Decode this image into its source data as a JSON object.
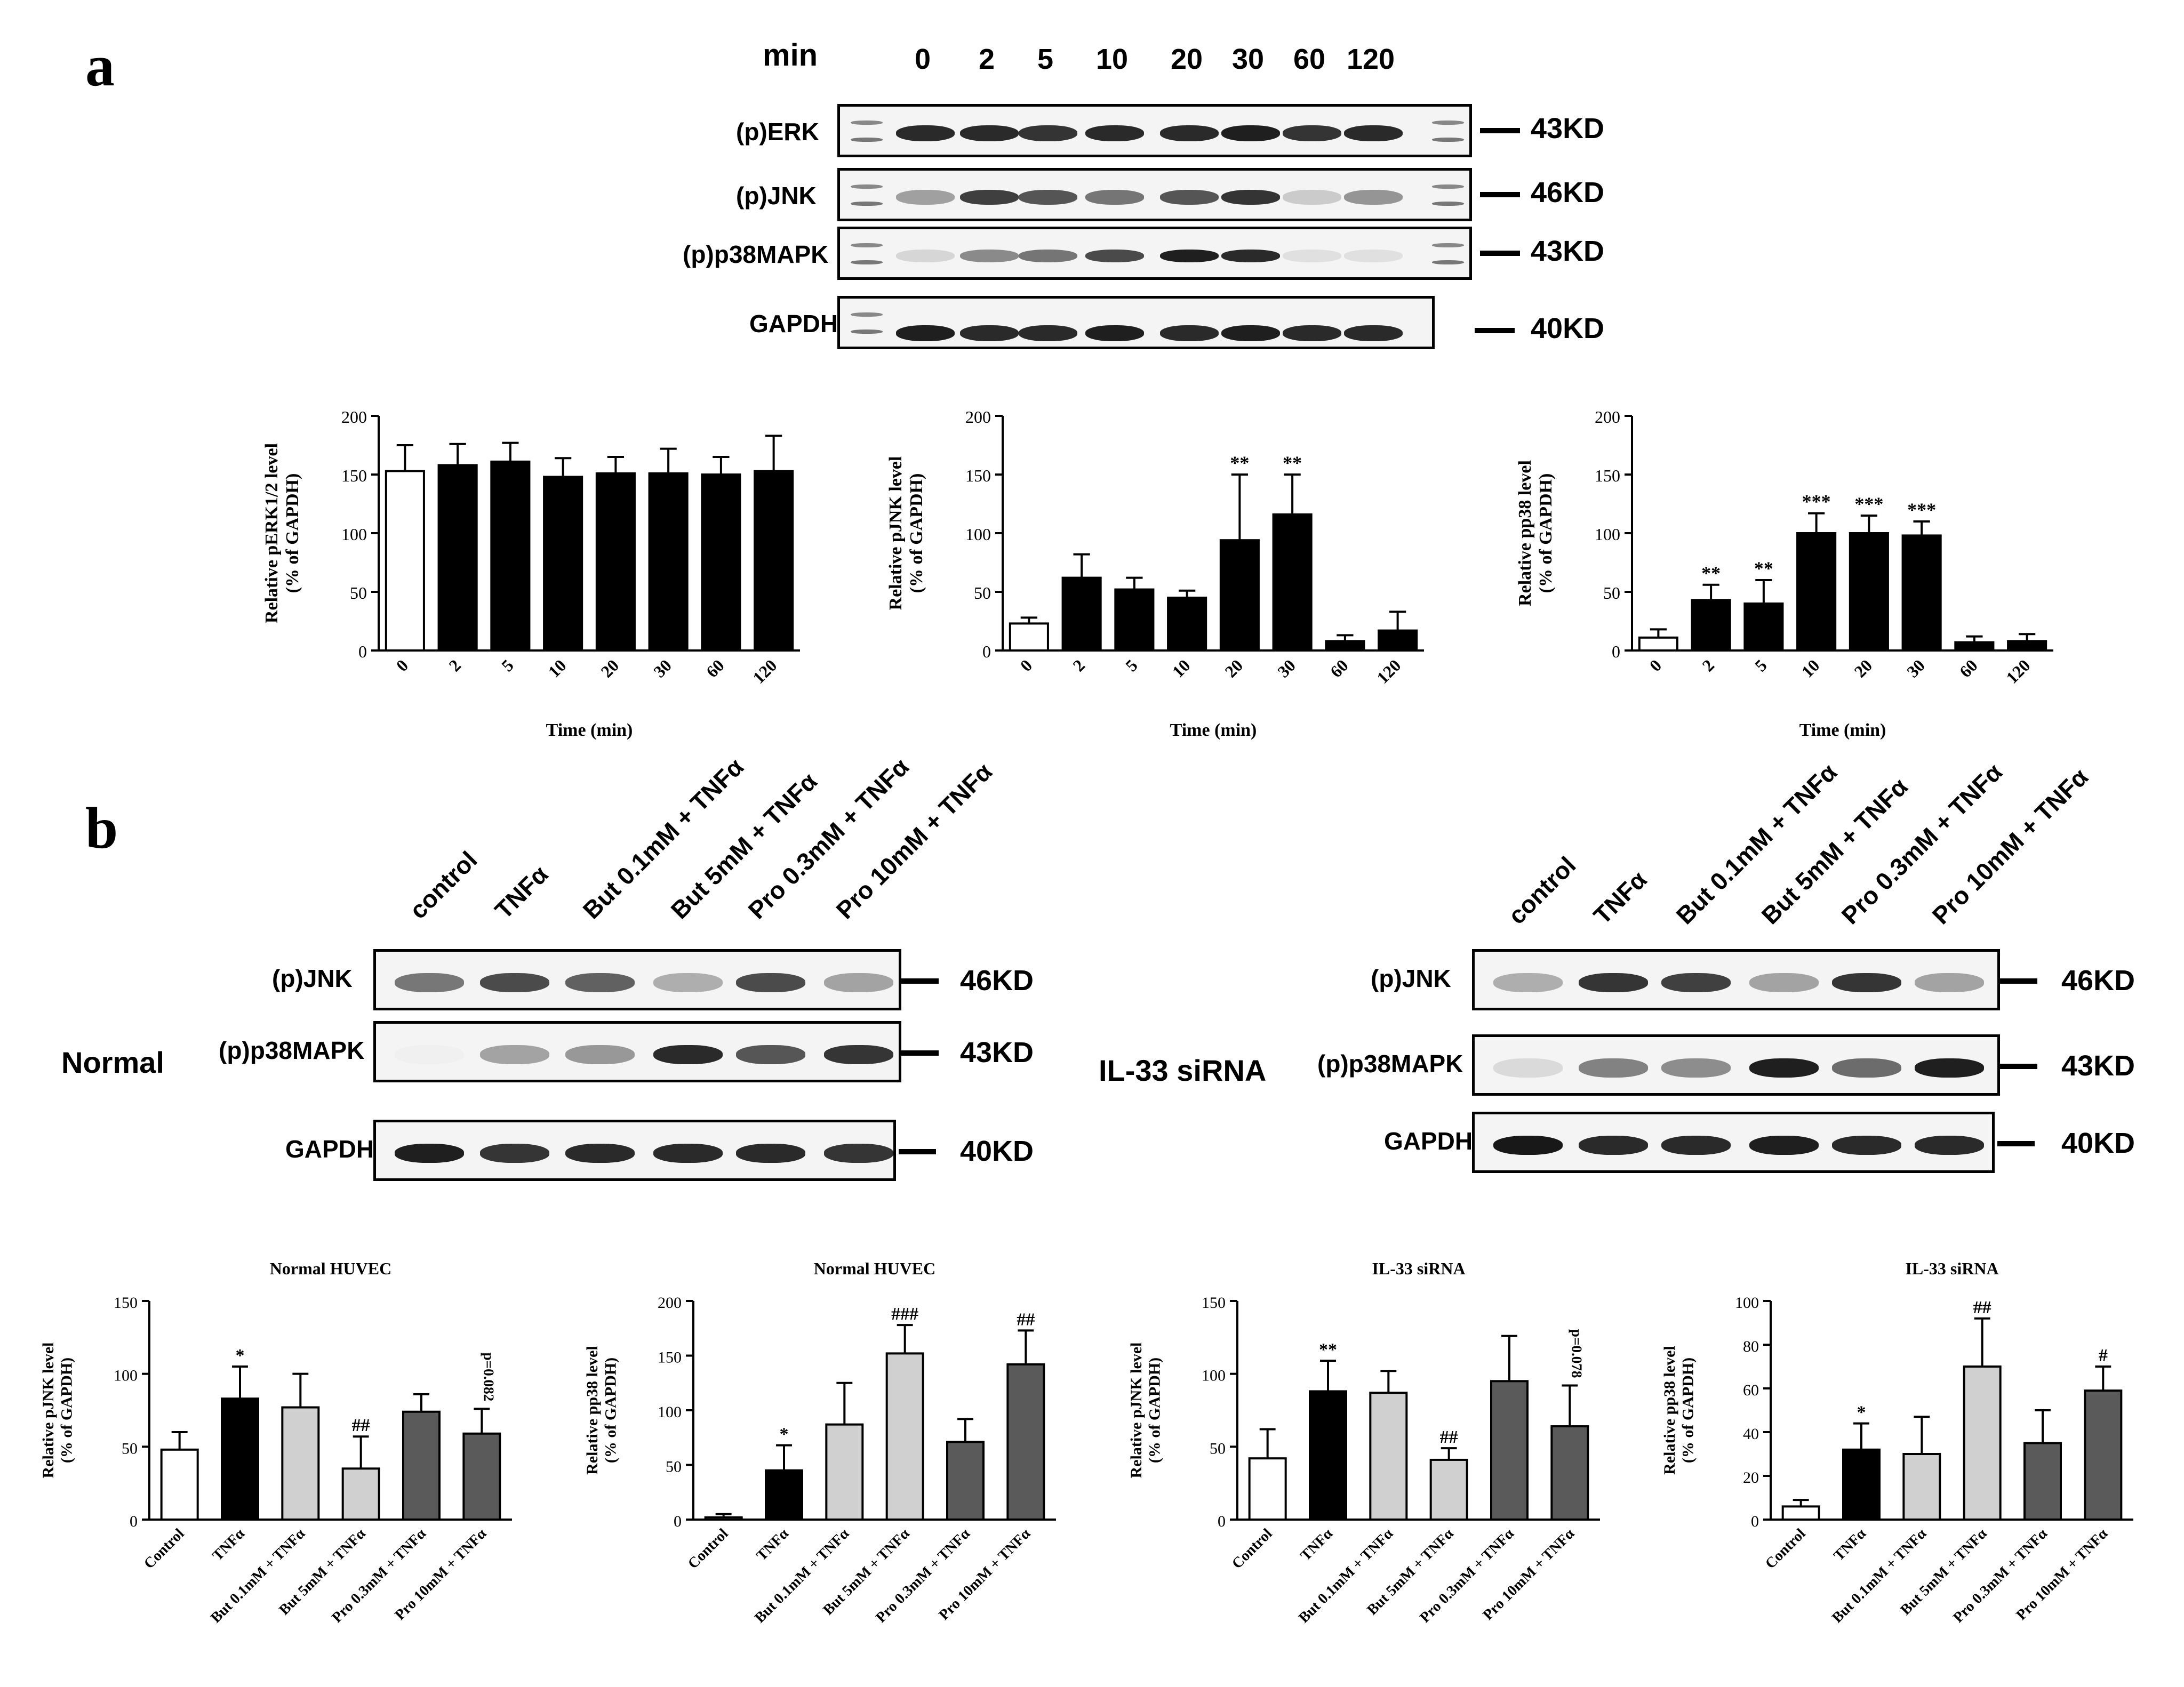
{
  "panel_a": {
    "letter": "a",
    "time_header": "min",
    "times": [
      "0",
      "2",
      "5",
      "10",
      "20",
      "30",
      "60",
      "120"
    ],
    "blots": [
      {
        "label": "(p)ERK",
        "kd": "43KD"
      },
      {
        "label": "(p)JNK",
        "kd": "46KD"
      },
      {
        "label": "(p)p38MAPK",
        "kd": "43KD"
      },
      {
        "label": "GAPDH",
        "kd": "40KD"
      }
    ]
  },
  "panel_b": {
    "letter": "b",
    "treatments": [
      "control",
      "TNFα",
      "But 0.1mM + TNFα",
      "But 5mM + TNFα",
      "Pro 0.3mM + TNFα",
      "Pro 10mM + TNFα"
    ],
    "left_group": "Normal",
    "right_group": "IL-33 siRNA",
    "blots": [
      {
        "label": "(p)JNK",
        "kd": "46KD"
      },
      {
        "label": "(p)p38MAPK",
        "kd": "43KD"
      },
      {
        "label": "GAPDH",
        "kd": "40KD"
      }
    ]
  },
  "chart_data": [
    {
      "type": "bar",
      "title": "",
      "xlabel": "Time (min)",
      "ylabel": "Relative pERK1/2 level\n(% of GAPDH)",
      "ylim": [
        0,
        200
      ],
      "yticks": [
        0,
        50,
        100,
        150,
        200
      ],
      "categories": [
        "0",
        "2",
        "5",
        "10",
        "20",
        "30",
        "60",
        "120"
      ],
      "values": [
        153,
        158,
        161,
        148,
        151,
        151,
        150,
        153
      ],
      "errors": [
        22,
        18,
        16,
        16,
        14,
        21,
        15,
        30
      ],
      "fills": [
        "#ffffff",
        "#000000",
        "#000000",
        "#000000",
        "#000000",
        "#000000",
        "#000000",
        "#000000"
      ],
      "annotations": [
        "",
        "",
        "",
        "",
        "",
        "",
        "",
        ""
      ]
    },
    {
      "type": "bar",
      "title": "",
      "xlabel": "Time (min)",
      "ylabel": "Relative pJNK level\n(% of GAPDH)",
      "ylim": [
        0,
        200
      ],
      "yticks": [
        0,
        50,
        100,
        150,
        200
      ],
      "categories": [
        "0",
        "2",
        "5",
        "10",
        "20",
        "30",
        "60",
        "120"
      ],
      "values": [
        23,
        62,
        52,
        45,
        94,
        116,
        8,
        17
      ],
      "errors": [
        5,
        20,
        10,
        6,
        56,
        34,
        5,
        16
      ],
      "fills": [
        "#ffffff",
        "#000000",
        "#000000",
        "#000000",
        "#000000",
        "#000000",
        "#000000",
        "#000000"
      ],
      "annotations": [
        "",
        "",
        "",
        "",
        "**",
        "**",
        "",
        ""
      ]
    },
    {
      "type": "bar",
      "title": "",
      "xlabel": "Time (min)",
      "ylabel": "Relative pp38 level\n(% of GAPDH)",
      "ylim": [
        0,
        200
      ],
      "yticks": [
        0,
        50,
        100,
        150,
        200
      ],
      "categories": [
        "0",
        "2",
        "5",
        "10",
        "20",
        "30",
        "60",
        "120"
      ],
      "values": [
        11,
        43,
        40,
        100,
        100,
        98,
        7,
        8
      ],
      "errors": [
        7,
        13,
        20,
        17,
        15,
        12,
        5,
        6
      ],
      "fills": [
        "#ffffff",
        "#000000",
        "#000000",
        "#000000",
        "#000000",
        "#000000",
        "#000000",
        "#000000"
      ],
      "annotations": [
        "",
        "**",
        "**",
        "***",
        "***",
        "***",
        "",
        ""
      ]
    },
    {
      "type": "bar",
      "title": "Normal HUVEC",
      "xlabel": "",
      "ylabel": "Relative pJNK level\n(% of GAPDH)",
      "ylim": [
        0,
        150
      ],
      "yticks": [
        0,
        50,
        100,
        150
      ],
      "categories": [
        "Control",
        "TNFα",
        "But 0.1mM + TNFα",
        "But 5mM + TNFα",
        "Pro 0.3mM + TNFα",
        "Pro 10mM + TNFα"
      ],
      "values": [
        48,
        83,
        77,
        35,
        74,
        59
      ],
      "errors": [
        12,
        22,
        23,
        22,
        12,
        17
      ],
      "fills": [
        "#ffffff",
        "#000000",
        "#d0d0d0",
        "#d0d0d0",
        "#5a5a5a",
        "#5a5a5a"
      ],
      "annotations": [
        "",
        "*",
        "",
        "##",
        "",
        "p=0.082"
      ]
    },
    {
      "type": "bar",
      "title": "Normal HUVEC",
      "xlabel": "",
      "ylabel": "Relative pp38 level\n(% of GAPDH)",
      "ylim": [
        0,
        200
      ],
      "yticks": [
        0,
        50,
        100,
        150,
        200
      ],
      "categories": [
        "Control",
        "TNFα",
        "But 0.1mM + TNFα",
        "But 5mM + TNFα",
        "Pro 0.3mM + TNFα",
        "Pro 10mM + TNFα"
      ],
      "values": [
        2,
        45,
        87,
        152,
        71,
        142
      ],
      "errors": [
        3,
        23,
        38,
        26,
        21,
        31
      ],
      "fills": [
        "#ffffff",
        "#000000",
        "#d0d0d0",
        "#d0d0d0",
        "#5a5a5a",
        "#5a5a5a"
      ],
      "annotations": [
        "",
        "*",
        "",
        "###",
        "",
        "##"
      ]
    },
    {
      "type": "bar",
      "title": "IL-33 siRNA",
      "xlabel": "",
      "ylabel": "Relative pJNK level\n(% of GAPDH)",
      "ylim": [
        0,
        150
      ],
      "yticks": [
        0,
        50,
        100,
        150
      ],
      "categories": [
        "Control",
        "TNFα",
        "But 0.1mM + TNFα",
        "But 5mM + TNFα",
        "Pro 0.3mM + TNFα",
        "Pro 10mM + TNFα"
      ],
      "values": [
        42,
        88,
        87,
        41,
        95,
        64
      ],
      "errors": [
        20,
        21,
        15,
        8,
        31,
        28
      ],
      "fills": [
        "#ffffff",
        "#000000",
        "#d0d0d0",
        "#d0d0d0",
        "#5a5a5a",
        "#5a5a5a"
      ],
      "annotations": [
        "",
        "**",
        "",
        "##",
        "",
        "p=0.078"
      ]
    },
    {
      "type": "bar",
      "title": "IL-33 siRNA",
      "xlabel": "",
      "ylabel": "Relative pp38 level\n(% of GAPDH)",
      "ylim": [
        0,
        100
      ],
      "yticks": [
        0,
        20,
        40,
        60,
        80,
        100
      ],
      "categories": [
        "Control",
        "TNFα",
        "But 0.1mM + TNFα",
        "But 5mM + TNFα",
        "Pro 0.3mM + TNFα",
        "Pro 10mM + TNFα"
      ],
      "values": [
        6,
        32,
        30,
        70,
        35,
        59
      ],
      "errors": [
        3,
        12,
        17,
        22,
        15,
        11
      ],
      "fills": [
        "#ffffff",
        "#000000",
        "#d0d0d0",
        "#d0d0d0",
        "#5a5a5a",
        "#5a5a5a"
      ],
      "annotations": [
        "",
        "*",
        "",
        "##",
        "",
        "#"
      ]
    }
  ]
}
